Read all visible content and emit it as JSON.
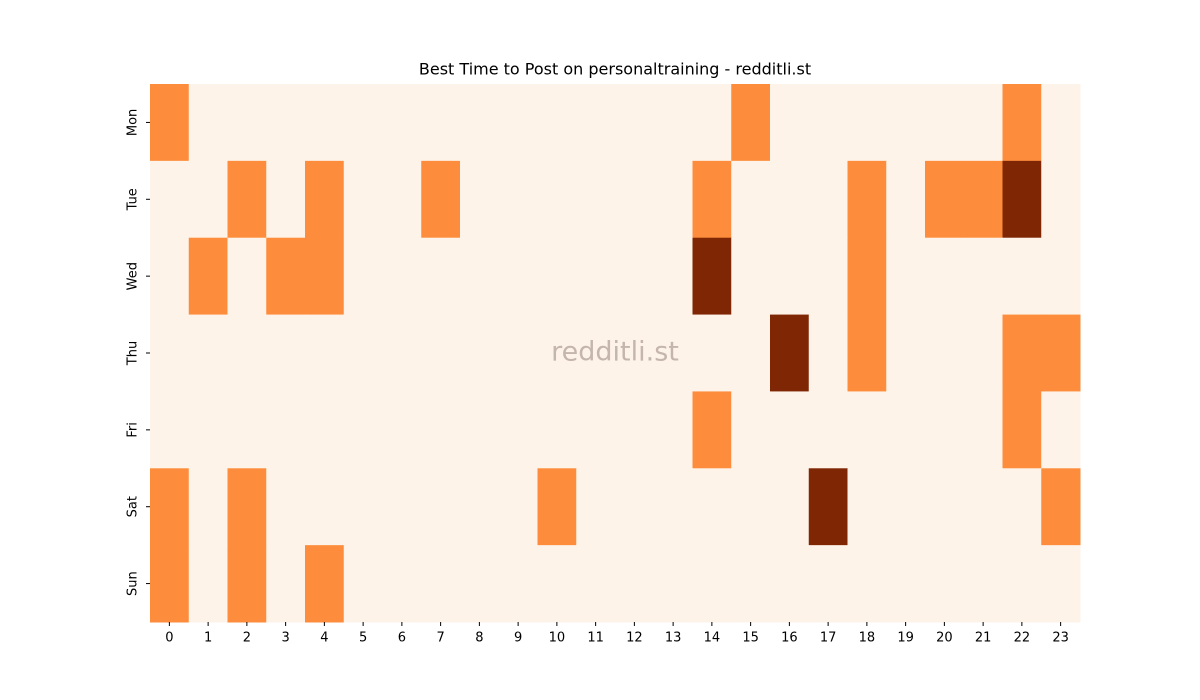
{
  "chart_data": {
    "type": "heatmap",
    "title": "Best Time to Post on personaltraining - redditli.st",
    "watermark": "redditli.st",
    "x": [
      0,
      1,
      2,
      3,
      4,
      5,
      6,
      7,
      8,
      9,
      10,
      11,
      12,
      13,
      14,
      15,
      16,
      17,
      18,
      19,
      20,
      21,
      22,
      23
    ],
    "y": [
      "Mon",
      "Tue",
      "Wed",
      "Thu",
      "Fri",
      "Sat",
      "Sun"
    ],
    "z": [
      [
        1,
        0,
        0,
        0,
        0,
        0,
        0,
        0,
        0,
        0,
        0,
        0,
        0,
        0,
        0,
        1,
        0,
        0,
        0,
        0,
        0,
        0,
        1,
        0
      ],
      [
        0,
        0,
        1,
        0,
        1,
        0,
        0,
        1,
        0,
        0,
        0,
        0,
        0,
        0,
        1,
        0,
        0,
        0,
        1,
        0,
        1,
        1,
        2,
        0
      ],
      [
        0,
        1,
        0,
        1,
        1,
        0,
        0,
        0,
        0,
        0,
        0,
        0,
        0,
        0,
        2,
        0,
        0,
        0,
        1,
        0,
        0,
        0,
        0,
        0
      ],
      [
        0,
        0,
        0,
        0,
        0,
        0,
        0,
        0,
        0,
        0,
        0,
        0,
        0,
        0,
        0,
        0,
        2,
        0,
        1,
        0,
        0,
        0,
        1,
        1
      ],
      [
        0,
        0,
        0,
        0,
        0,
        0,
        0,
        0,
        0,
        0,
        0,
        0,
        0,
        0,
        1,
        0,
        0,
        0,
        0,
        0,
        0,
        0,
        1,
        0
      ],
      [
        1,
        0,
        1,
        0,
        0,
        0,
        0,
        0,
        0,
        0,
        1,
        0,
        0,
        0,
        0,
        0,
        0,
        2,
        0,
        0,
        0,
        0,
        0,
        1
      ],
      [
        1,
        0,
        1,
        0,
        1,
        0,
        0,
        0,
        0,
        0,
        0,
        0,
        0,
        0,
        0,
        0,
        0,
        0,
        0,
        0,
        0,
        0,
        0,
        0
      ]
    ],
    "zlim": [
      0,
      2
    ],
    "colormap": [
      "#fef3e8",
      "#fd8d3c",
      "#7f2704"
    ]
  }
}
